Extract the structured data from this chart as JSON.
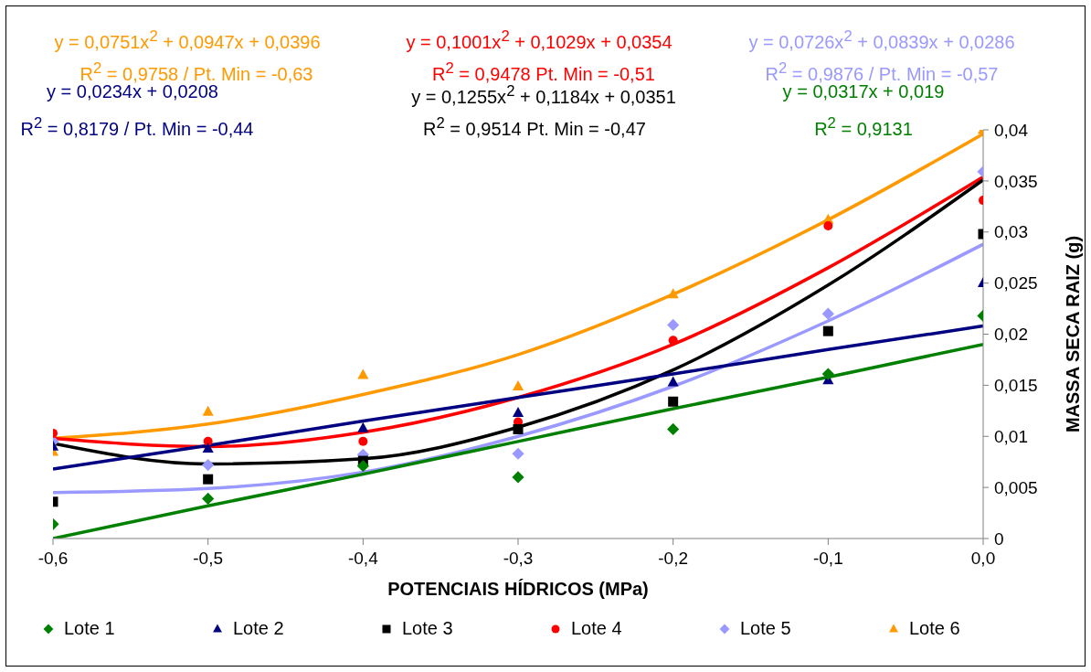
{
  "chart_data": {
    "type": "scatter",
    "xlabel": "POTENCIAIS HÍDRICOS (MPa)",
    "ylabel": "MASSA SECA RAIZ (g)",
    "x": [
      -0.6,
      -0.5,
      -0.4,
      -0.3,
      -0.2,
      -0.1,
      0.0
    ],
    "xlim": [
      -0.6,
      0.0
    ],
    "xticks": [
      {
        "value": -0.6,
        "label": "-0,6"
      },
      {
        "value": -0.5,
        "label": "-0,5"
      },
      {
        "value": -0.4,
        "label": "-0,4"
      },
      {
        "value": -0.3,
        "label": "-0,3"
      },
      {
        "value": -0.2,
        "label": "-0,2"
      },
      {
        "value": -0.1,
        "label": "-0,1"
      },
      {
        "value": 0.0,
        "label": "0,0"
      }
    ],
    "ylim": [
      0,
      0.04
    ],
    "yticks": [
      0,
      {
        "value": 0.005,
        "label": "0,005"
      },
      {
        "value": 0.01,
        "label": "0,01"
      },
      {
        "value": 0.015,
        "label": "0,015"
      },
      {
        "value": 0.02,
        "label": "0,02"
      },
      {
        "value": 0.025,
        "label": "0,025"
      },
      {
        "value": 0.03,
        "label": "0,03"
      },
      {
        "value": 0.035,
        "label": "0,035"
      },
      {
        "value": 0.04,
        "label": "0,04"
      }
    ],
    "grid": false,
    "legend": "bottom",
    "series": [
      {
        "name": "Lote 1",
        "color": "#008000",
        "marker": "diamond",
        "values": [
          0.0014,
          0.0039,
          0.0071,
          0.006,
          0.0107,
          0.0161,
          0.0218
        ]
      },
      {
        "name": "Lote 2",
        "color": "#000080",
        "marker": "triangle",
        "values": [
          0.009,
          0.0088,
          0.0108,
          0.0123,
          0.0153,
          0.0155,
          0.025
        ]
      },
      {
        "name": "Lote 3",
        "color": "#000000",
        "marker": "square",
        "values": [
          0.0036,
          0.0058,
          0.0076,
          0.0107,
          0.0134,
          0.0203,
          0.0298
        ]
      },
      {
        "name": "Lote 4",
        "color": "#ff0000",
        "marker": "circle",
        "values": [
          0.0103,
          0.0095,
          0.0095,
          0.0114,
          0.0194,
          0.0306,
          0.0331
        ]
      },
      {
        "name": "Lote 5",
        "color": "#9999ff",
        "marker": "diamond",
        "values": [
          0.0095,
          0.0072,
          0.0082,
          0.0083,
          0.0209,
          0.022,
          0.0359
        ]
      },
      {
        "name": "Lote 6",
        "color": "#ff9900",
        "marker": "triangle",
        "values": [
          0.0085,
          0.0124,
          0.016,
          0.0149,
          0.0239,
          0.0312,
          0.04
        ]
      },
      {
        "type": "line",
        "color": "#008000",
        "marker": "none",
        "x": [
          -0.6,
          -0.5,
          -0.4,
          -0.3,
          -0.2,
          -0.1,
          0.0
        ],
        "values": [
          0.0,
          0.0032,
          0.0063,
          0.0095,
          0.0127,
          0.0158,
          0.019
        ]
      },
      {
        "type": "line",
        "color": "#000080",
        "marker": "none",
        "x": [
          -0.6,
          -0.5,
          -0.4,
          -0.3,
          -0.2,
          -0.1,
          0.0
        ],
        "values": [
          0.0068,
          0.0091,
          0.0115,
          0.0138,
          0.0161,
          0.0185,
          0.0208
        ]
      },
      {
        "type": "line",
        "color": "#000000",
        "marker": "none",
        "x": [
          -0.6,
          -0.5,
          -0.4,
          -0.3,
          -0.2,
          -0.1,
          0.0
        ],
        "values": [
          0.0093,
          0.0073,
          0.0078,
          0.0109,
          0.0165,
          0.0248,
          0.0351
        ]
      },
      {
        "type": "line",
        "color": "#ff0000",
        "marker": "none",
        "x": [
          -0.6,
          -0.5,
          -0.4,
          -0.3,
          -0.2,
          -0.1,
          0.0
        ],
        "values": [
          0.0098,
          0.009,
          0.0104,
          0.0138,
          0.019,
          0.0265,
          0.0354
        ]
      },
      {
        "type": "line",
        "color": "#9999ff",
        "marker": "none",
        "x": [
          -0.6,
          -0.5,
          -0.4,
          -0.3,
          -0.2,
          -0.1,
          0.0
        ],
        "values": [
          0.0045,
          0.0049,
          0.0065,
          0.01,
          0.0149,
          0.0213,
          0.0288
        ]
      },
      {
        "type": "line",
        "color": "#ff9900",
        "marker": "none",
        "x": [
          -0.6,
          -0.5,
          -0.4,
          -0.3,
          -0.2,
          -0.1,
          0.0
        ],
        "values": [
          0.0098,
          0.0112,
          0.0141,
          0.018,
          0.0239,
          0.0312,
          0.0396
        ]
      }
    ],
    "annotations": [
      "y = 0,0751x$^{2}$ + 0,0947x + 0,0396",
      "R$^{2}$ = 0,9758 / Pt. Min = -0,63",
      "y = 0,1001x$^{2}$ + 0,1029x + 0,0354",
      "R$^{2}$ = 0,9478 Pt. Min = -0,51",
      "y = 0,0726x$^{2}$ + 0,0839x + 0,0286",
      "R$^{2}$ = 0,9876 / Pt. Min = -0,57",
      "y = 0,0234x + 0,0208",
      "R$^{2}$ = 0,8179 / Pt. Min = -0,44",
      "y = 0,1255x$^{2}$ + 0,1184x + 0,0351",
      "R$^{2}$ = 0,9514 Pt. Min = -0,47",
      "y = 0,0317x + 0,019",
      "R$^{2}$ = 0,9131"
    ]
  }
}
